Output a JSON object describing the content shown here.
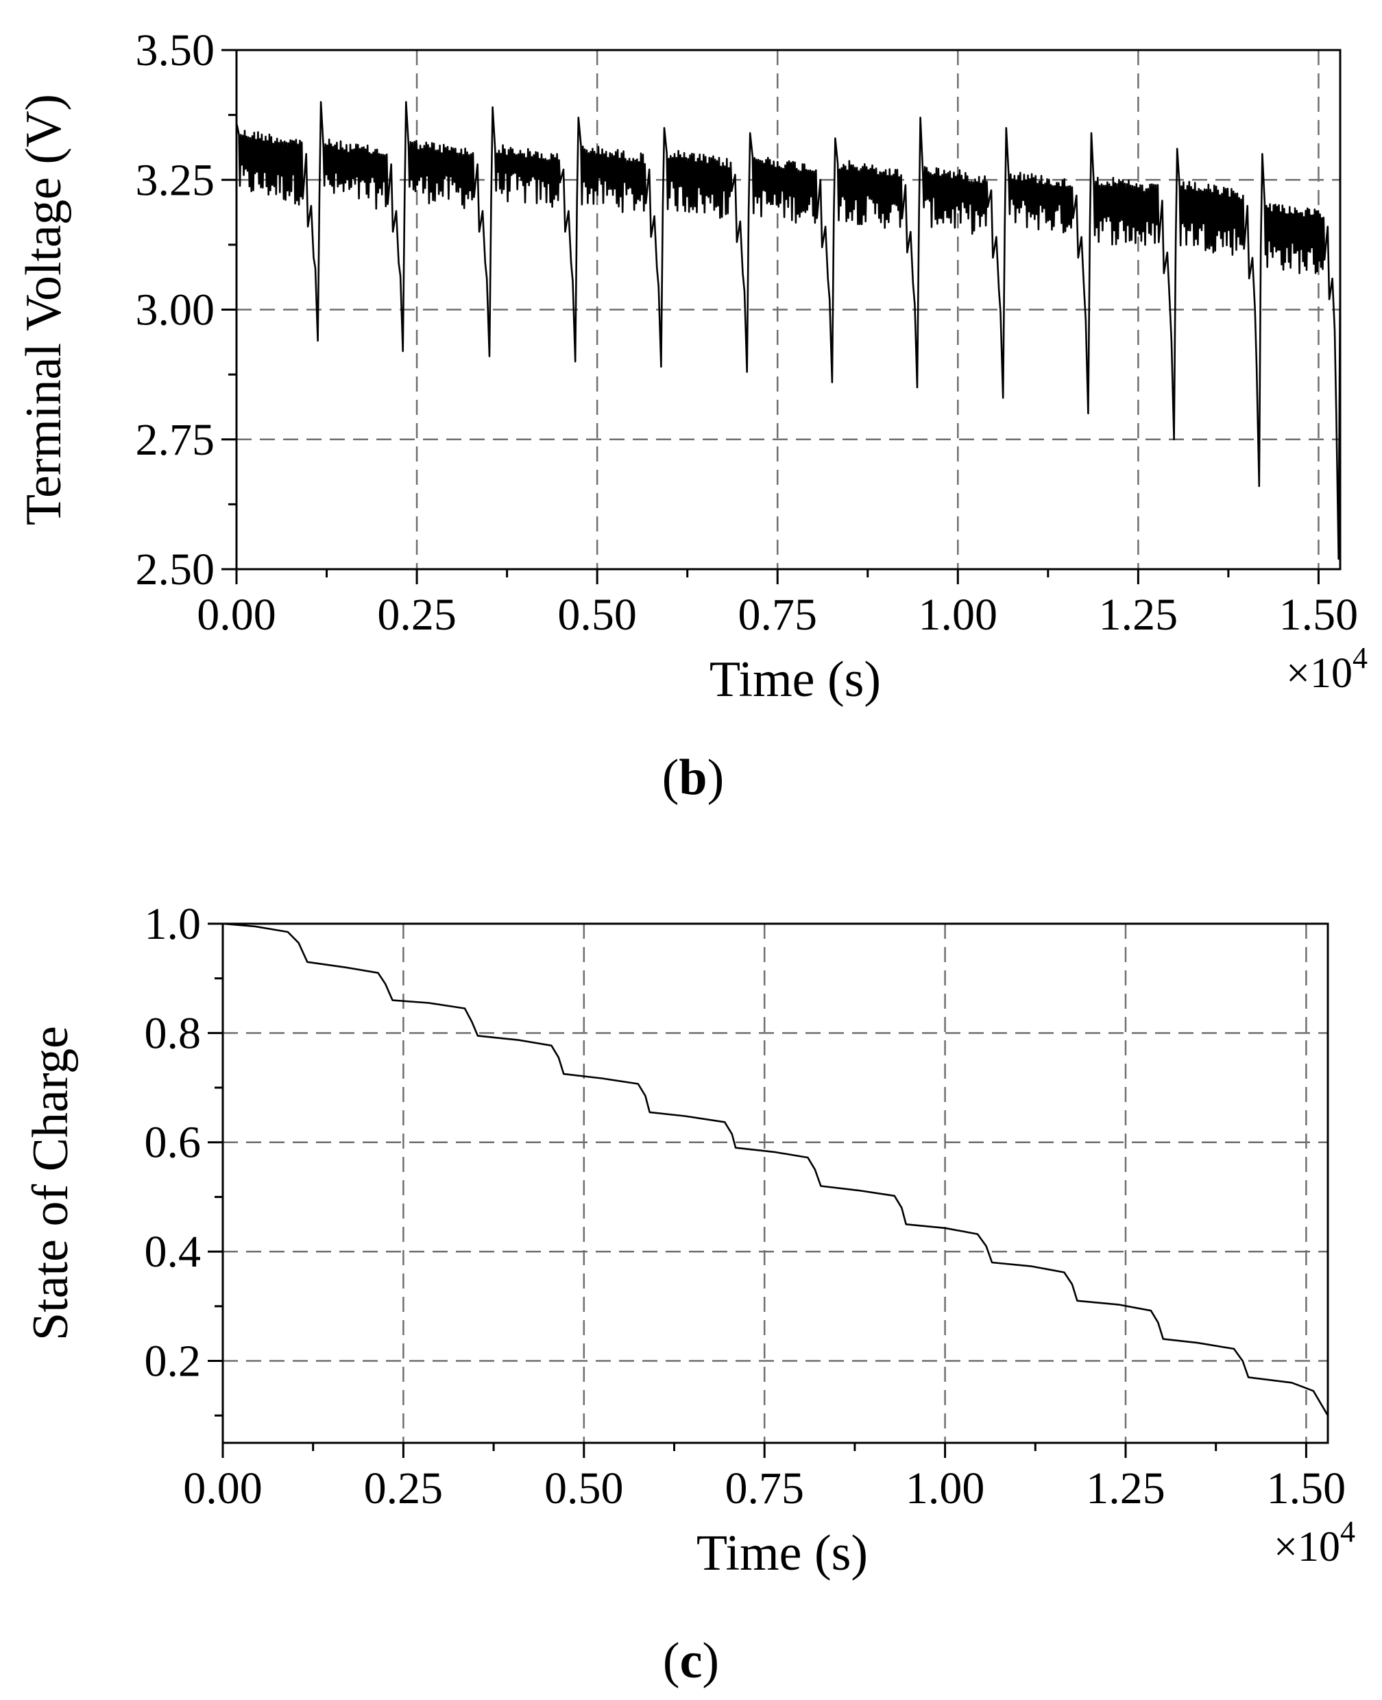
{
  "chart_data": [
    {
      "type": "line",
      "panel_label": "b",
      "xlabel": "Time (s)",
      "ylabel": "Terminal Voltage (V)",
      "x_multiplier": "×10",
      "x_multiplier_exp": "4",
      "xlim": [
        0,
        15300
      ],
      "ylim": [
        2.5,
        3.5
      ],
      "xticks": [
        "0.00",
        "0.25",
        "0.50",
        "0.75",
        "1.00",
        "1.25",
        "1.50"
      ],
      "yticks": [
        "2.50",
        "2.75",
        "3.00",
        "3.25",
        "3.50"
      ],
      "grid": "dashed",
      "series": [
        {
          "color": "#000000",
          "pulse_cycles": [
            {
              "start": 0,
              "end": 1150,
              "upper": 3.35,
              "lower": 3.22,
              "min": 2.94,
              "spike": 3.36
            },
            {
              "start": 1170,
              "end": 2330,
              "upper": 3.33,
              "lower": 3.21,
              "min": 2.92,
              "spike": 3.4
            },
            {
              "start": 2350,
              "end": 3530,
              "upper": 3.33,
              "lower": 3.21,
              "min": 2.91,
              "spike": 3.4
            },
            {
              "start": 3550,
              "end": 4720,
              "upper": 3.32,
              "lower": 3.21,
              "min": 2.9,
              "spike": 3.39
            },
            {
              "start": 4740,
              "end": 5910,
              "upper": 3.32,
              "lower": 3.2,
              "min": 2.89,
              "spike": 3.37
            },
            {
              "start": 5930,
              "end": 7100,
              "upper": 3.31,
              "lower": 3.19,
              "min": 2.88,
              "spike": 3.35
            },
            {
              "start": 7120,
              "end": 8280,
              "upper": 3.3,
              "lower": 3.18,
              "min": 2.86,
              "spike": 3.34
            },
            {
              "start": 8300,
              "end": 9460,
              "upper": 3.29,
              "lower": 3.17,
              "min": 2.85,
              "spike": 3.33
            },
            {
              "start": 9480,
              "end": 10650,
              "upper": 3.28,
              "lower": 3.16,
              "min": 2.83,
              "spike": 3.37
            },
            {
              "start": 10670,
              "end": 11830,
              "upper": 3.27,
              "lower": 3.16,
              "min": 2.8,
              "spike": 3.35
            },
            {
              "start": 11850,
              "end": 13020,
              "upper": 3.26,
              "lower": 3.13,
              "min": 2.75,
              "spike": 3.34
            },
            {
              "start": 13040,
              "end": 14200,
              "upper": 3.25,
              "lower": 3.12,
              "min": 2.66,
              "spike": 3.31
            },
            {
              "start": 14220,
              "end": 15300,
              "upper": 3.21,
              "lower": 3.08,
              "min": 2.52,
              "spike": 3.3
            }
          ]
        }
      ]
    },
    {
      "type": "line",
      "panel_label": "c",
      "xlabel": "Time (s)",
      "ylabel": "State of Charge",
      "x_multiplier": "×10",
      "x_multiplier_exp": "4",
      "xlim": [
        0,
        15300
      ],
      "ylim": [
        0.05,
        1.0
      ],
      "xticks": [
        "0.00",
        "0.25",
        "0.50",
        "0.75",
        "1.00",
        "1.25",
        "1.50"
      ],
      "yticks": [
        "0.2",
        "0.4",
        "0.6",
        "0.8",
        "1.0"
      ],
      "grid": "dashed",
      "series": [
        {
          "color": "#000000",
          "x": [
            0,
            450,
            900,
            1050,
            1170,
            1700,
            2150,
            2250,
            2350,
            2850,
            3350,
            3450,
            3530,
            4100,
            4550,
            4650,
            4720,
            5250,
            5750,
            5850,
            5910,
            6400,
            6950,
            7050,
            7100,
            7650,
            8100,
            8200,
            8280,
            8800,
            9300,
            9400,
            9460,
            10000,
            10450,
            10570,
            10650,
            11200,
            11650,
            11760,
            11830,
            12400,
            12850,
            12950,
            13020,
            13500,
            14000,
            14120,
            14200,
            14800,
            15100,
            15300
          ],
          "y": [
            1.0,
            0.995,
            0.985,
            0.965,
            0.93,
            0.92,
            0.91,
            0.89,
            0.86,
            0.855,
            0.845,
            0.82,
            0.795,
            0.787,
            0.777,
            0.755,
            0.725,
            0.717,
            0.707,
            0.685,
            0.655,
            0.648,
            0.637,
            0.615,
            0.59,
            0.582,
            0.572,
            0.55,
            0.52,
            0.512,
            0.502,
            0.48,
            0.45,
            0.443,
            0.432,
            0.41,
            0.38,
            0.373,
            0.362,
            0.34,
            0.31,
            0.303,
            0.292,
            0.27,
            0.24,
            0.233,
            0.222,
            0.2,
            0.17,
            0.16,
            0.145,
            0.1
          ]
        }
      ]
    }
  ]
}
